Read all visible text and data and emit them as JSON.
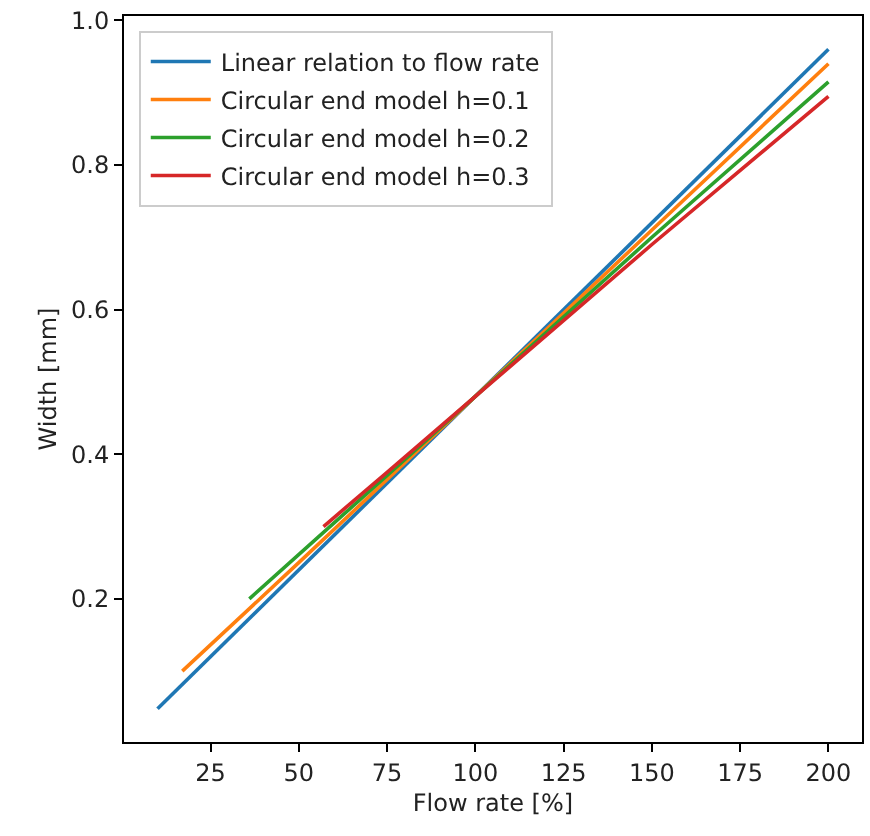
{
  "chart_data": {
    "type": "line",
    "xlabel": "Flow rate [%]",
    "ylabel": "Width [mm]",
    "xlim": [
      0.5,
      209.5
    ],
    "ylim": [
      0.002,
      1.006
    ],
    "xticks": [
      25,
      50,
      75,
      100,
      125,
      150,
      175,
      200
    ],
    "yticks": [
      0.2,
      0.4,
      0.6,
      0.8,
      {
        "value": 1,
        "label": "1.0"
      }
    ],
    "legend": "top left",
    "line_style": "solid",
    "marker": "none",
    "series": [
      {
        "name": "Linear relation to flow rate",
        "color": "#1f77b4",
        "x": [
          10,
          200
        ],
        "values": [
          0.048,
          0.96
        ]
      },
      {
        "name": "Circular end model h=0.1",
        "color": "#ff7f0e",
        "x": [
          17,
          50,
          100,
          150,
          200
        ],
        "values": [
          0.1,
          0.25,
          0.48,
          0.71,
          0.94
        ]
      },
      {
        "name": "Circular end model h=0.2",
        "color": "#2ca02c",
        "x": [
          36,
          60,
          100,
          150,
          200
        ],
        "values": [
          0.2,
          0.305,
          0.48,
          0.7,
          0.915
        ]
      },
      {
        "name": "Circular end model h=0.3",
        "color": "#d62728",
        "x": [
          57,
          75,
          100,
          150,
          200
        ],
        "values": [
          0.3,
          0.375,
          0.48,
          0.69,
          0.895
        ]
      }
    ]
  }
}
